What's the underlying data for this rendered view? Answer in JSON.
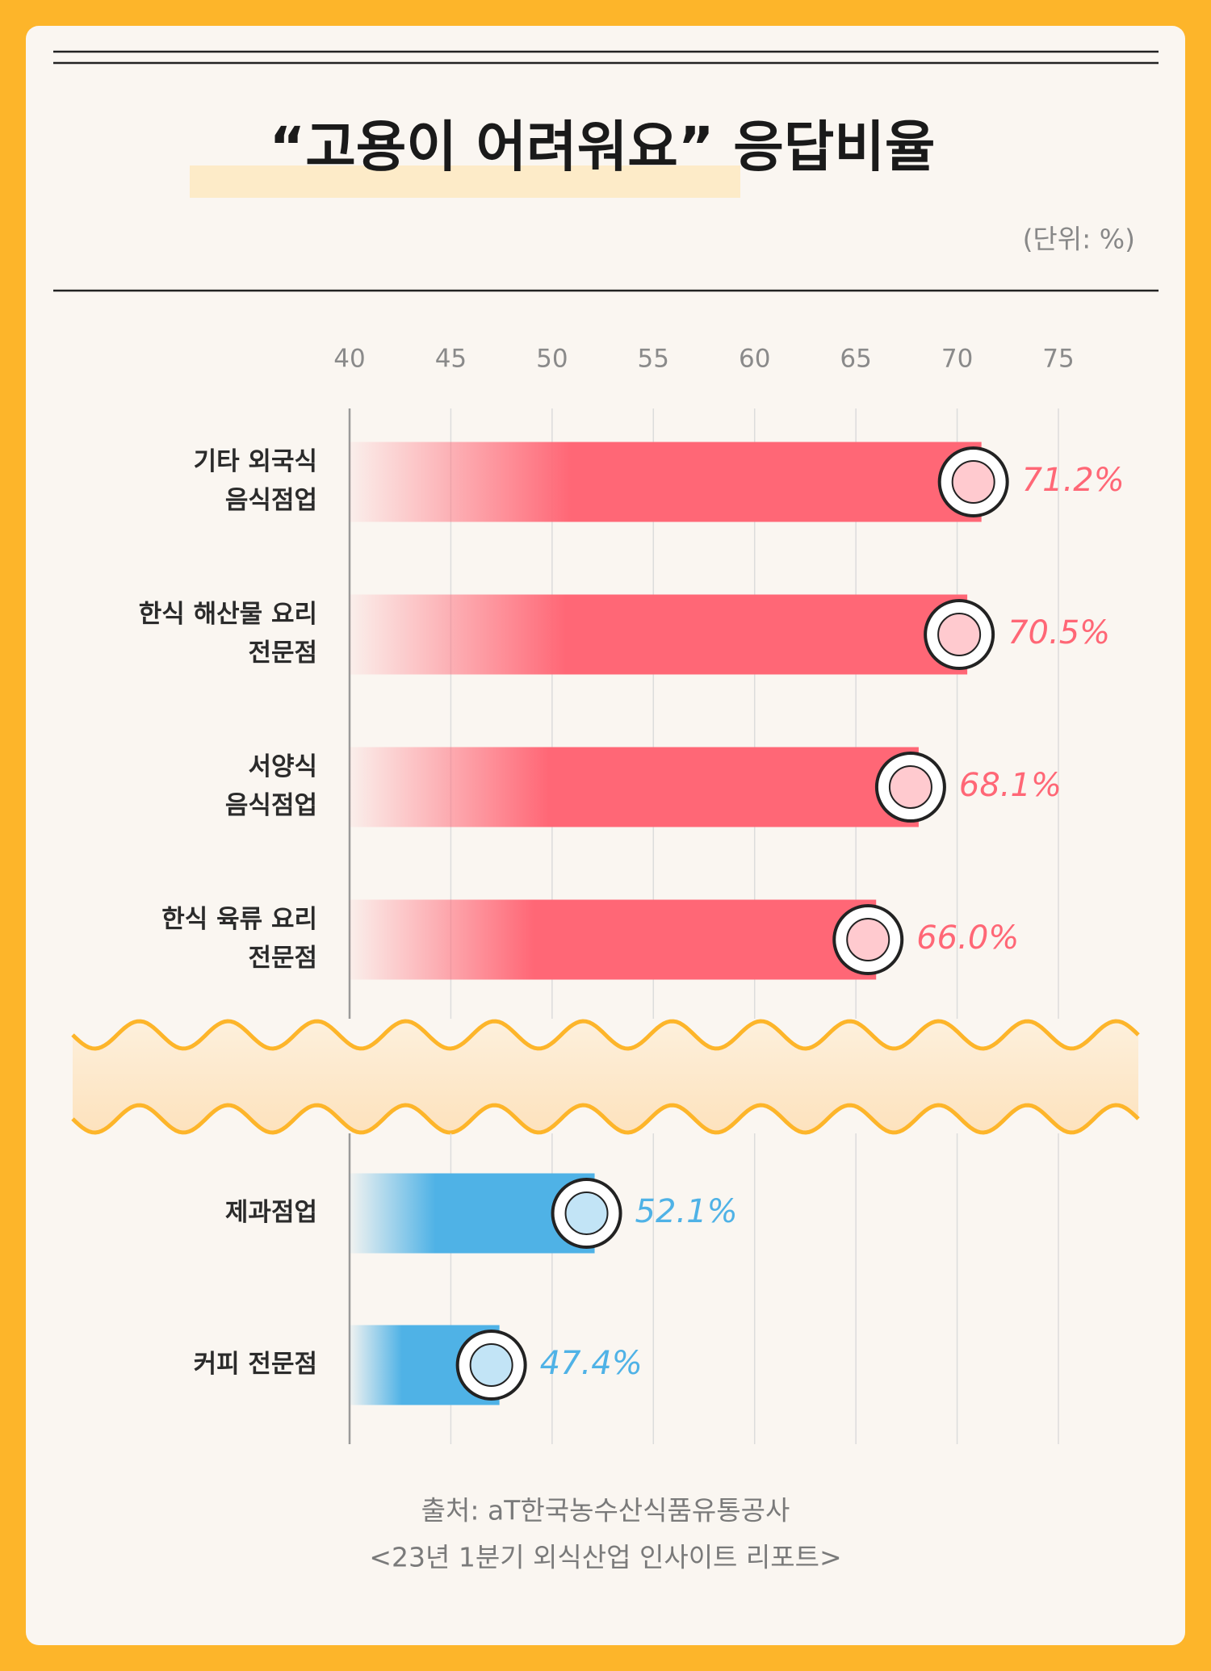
{
  "chart_data": {
    "type": "bar",
    "orientation": "horizontal",
    "title": "“고용이 어려워요” 응답비율",
    "unit": "(단위: %)",
    "categories": [
      "기타 외국식\n음식점업",
      "한식 해산물 요리\n전문점",
      "서양식\n음식점업",
      "한식 육류 요리\n전문점",
      "제과점업",
      "커피 전문점"
    ],
    "values": [
      71.2,
      70.5,
      68.1,
      66.0,
      52.1,
      47.4
    ],
    "value_labels": [
      "71.2%",
      "70.5%",
      "68.1%",
      "66.0%",
      "52.1%",
      "47.4%"
    ],
    "colors": [
      "#ff6776",
      "#ff6776",
      "#ff6776",
      "#ff6776",
      "#4fb2e6",
      "#4fb2e6"
    ],
    "xlim": [
      40,
      75
    ],
    "xticks": [
      40,
      45,
      50,
      55,
      60,
      65,
      70,
      75
    ],
    "axis_break_after": 3,
    "grid": true,
    "source": [
      "출처: aT한국농수산식품유통공사",
      "<23년 1분기 외식산업 인사이트 리포트>"
    ]
  }
}
